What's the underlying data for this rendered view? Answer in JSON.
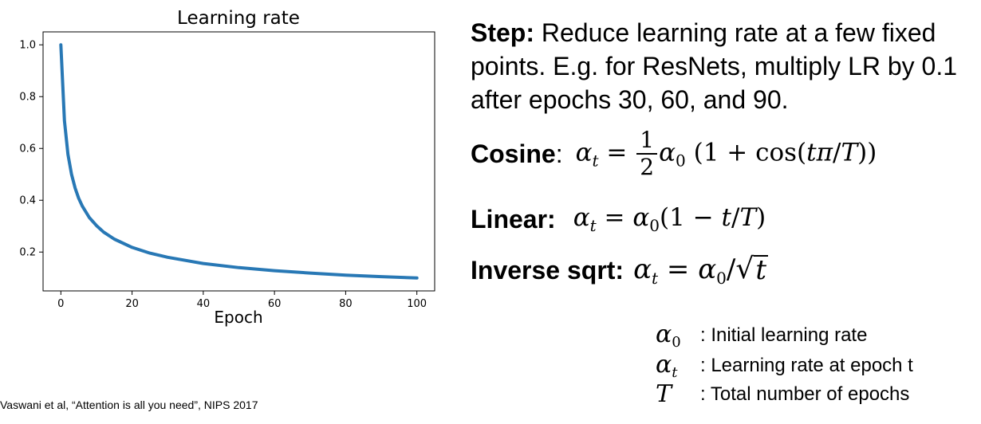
{
  "chart_data": {
    "type": "line",
    "title": "Learning rate",
    "xlabel": "Epoch",
    "ylabel": "",
    "xlim": [
      -5,
      105
    ],
    "ylim": [
      0.05,
      1.05
    ],
    "x_ticks": [
      0,
      20,
      40,
      60,
      80,
      100
    ],
    "y_ticks": [
      0.2,
      0.4,
      0.6,
      0.8,
      1.0
    ],
    "y_tick_labels": [
      "0.2",
      "0.4",
      "0.6",
      "0.8",
      "1.0"
    ],
    "grid": false,
    "series": [
      {
        "color": "#2878b5",
        "x": [
          0,
          1,
          2,
          3,
          4,
          5,
          6,
          8,
          10,
          12,
          15,
          20,
          25,
          30,
          40,
          50,
          60,
          70,
          80,
          90,
          100
        ],
        "y": [
          1.0,
          0.707,
          0.577,
          0.5,
          0.447,
          0.408,
          0.378,
          0.333,
          0.302,
          0.277,
          0.25,
          0.218,
          0.196,
          0.18,
          0.156,
          0.14,
          0.128,
          0.119,
          0.111,
          0.105,
          0.1
        ]
      }
    ]
  },
  "step": {
    "label": "Step:",
    "text": " Reduce learning rate at a few fixed points. E.g. for ResNets, multiply LR by 0.1 after epochs 30, 60, and 90."
  },
  "formulas": {
    "cosine_label": "Cosine",
    "cosine_colon": ":",
    "linear_label": "Linear:",
    "inverse_label": "Inverse sqrt:"
  },
  "legend": {
    "alpha0_desc": ": Initial learning rate",
    "alphat_desc": ": Learning rate at epoch t",
    "T_desc": ": Total number of epochs"
  },
  "citation": "Vaswani et al, “Attention is all you need”, NIPS 2017"
}
